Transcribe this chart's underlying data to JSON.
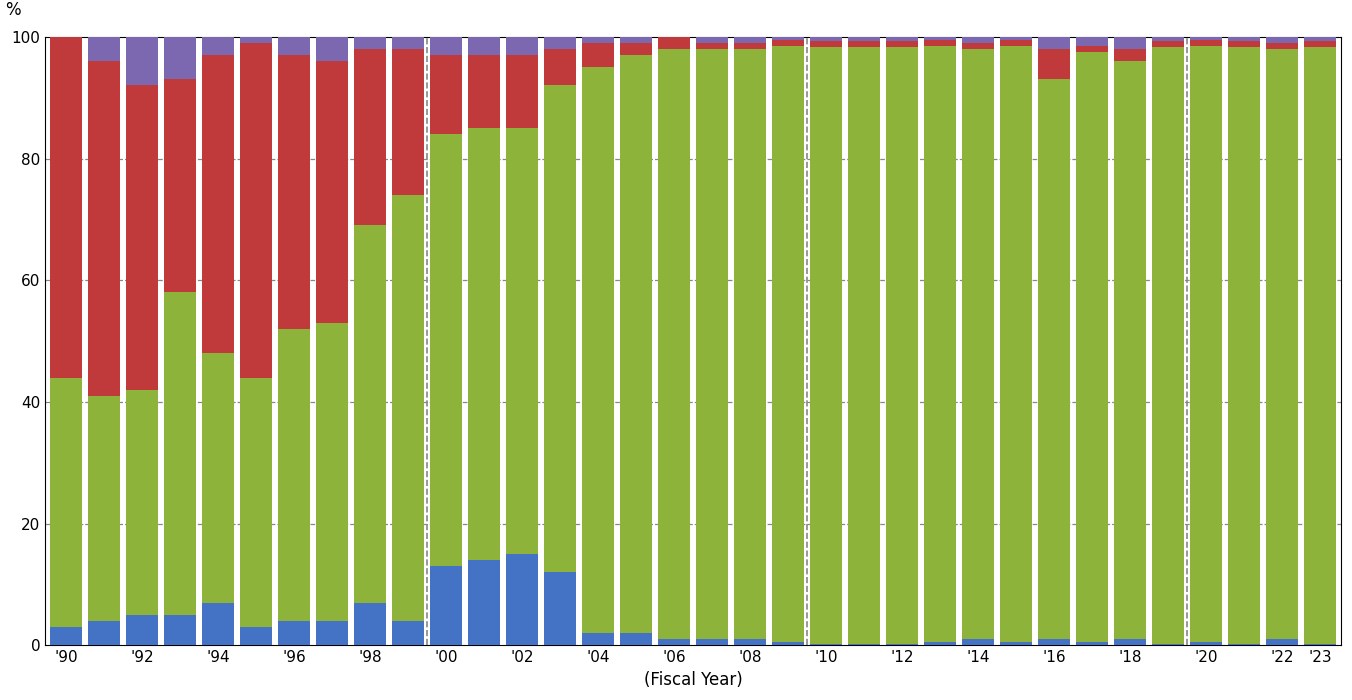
{
  "xlabel": "(Fiscal Year)",
  "ylabel": "%",
  "ylim": [
    0,
    100
  ],
  "years": [
    1990,
    1991,
    1992,
    1993,
    1994,
    1995,
    1996,
    1997,
    1998,
    1999,
    2000,
    2001,
    2002,
    2003,
    2004,
    2005,
    2006,
    2007,
    2008,
    2009,
    2010,
    2011,
    2012,
    2013,
    2014,
    2015,
    2016,
    2017,
    2018,
    2019,
    2020,
    2021,
    2022,
    2023
  ],
  "blue": [
    3,
    4,
    5,
    5,
    7,
    3,
    4,
    4,
    7,
    4,
    13,
    14,
    15,
    12,
    2,
    2,
    1,
    1,
    1,
    0.5,
    0.3,
    0.3,
    0.3,
    0.5,
    1,
    0.5,
    1,
    0.5,
    1,
    0.3,
    0.5,
    0.3,
    1,
    0.3
  ],
  "green": [
    41,
    37,
    37,
    53,
    41,
    41,
    48,
    49,
    62,
    70,
    71,
    71,
    70,
    80,
    93,
    95,
    97,
    97,
    97,
    98,
    98,
    98,
    98,
    98,
    97,
    98,
    92,
    97,
    95,
    98,
    98,
    98,
    97,
    98
  ],
  "red": [
    56,
    55,
    50,
    35,
    49,
    55,
    45,
    43,
    29,
    24,
    13,
    12,
    12,
    6,
    4,
    2,
    2,
    1,
    1,
    1,
    1,
    1,
    1,
    1,
    1,
    1,
    5,
    1,
    2,
    1,
    1,
    1,
    1,
    1
  ],
  "purple": [
    0,
    4,
    8,
    7,
    3,
    1,
    3,
    4,
    2,
    2,
    3,
    3,
    3,
    2,
    1,
    1,
    0,
    1,
    1,
    0.5,
    0.7,
    0.7,
    0.7,
    0.5,
    1,
    0.5,
    2,
    1.5,
    2,
    0.7,
    0.5,
    0.7,
    1,
    0.7
  ],
  "colors": [
    "#4472c4",
    "#8db33a",
    "#c0393b",
    "#7b68b0"
  ],
  "dashed_vlines": [
    1999.5,
    2009.5,
    2019.5
  ],
  "xtick_years": [
    1990,
    1992,
    1994,
    1996,
    1998,
    2000,
    2002,
    2004,
    2006,
    2008,
    2010,
    2012,
    2014,
    2016,
    2018,
    2020,
    2022,
    2023
  ],
  "xtick_labels": [
    "'90",
    "'92",
    "'94",
    "'96",
    "'98",
    "'00",
    "'02",
    "'04",
    "'06",
    "'08",
    "'10",
    "'12",
    "'14",
    "'16",
    "'18",
    "'20",
    "'22",
    "'23"
  ],
  "ytick_vals": [
    0,
    20,
    40,
    60,
    80,
    100
  ],
  "ytick_labels": [
    "0",
    "20",
    "40",
    "60",
    "80",
    "100"
  ],
  "grid_color": "#888888",
  "background_color": "#ffffff",
  "bar_width": 0.85
}
